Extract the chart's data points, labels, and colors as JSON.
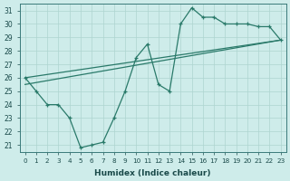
{
  "xlabel": "Humidex (Indice chaleur)",
  "background_color": "#ceecea",
  "line_color": "#2a7a6a",
  "grid_color": "#add4d0",
  "line1_x": [
    0,
    1,
    2,
    3,
    4,
    5,
    6,
    7,
    8,
    9,
    10,
    11,
    12,
    13,
    14,
    15,
    16,
    17,
    18,
    19,
    20,
    21,
    22,
    23
  ],
  "line1_y": [
    26,
    25,
    24,
    24,
    23,
    20.8,
    21,
    21.2,
    23,
    25,
    27.5,
    28.5,
    25.5,
    25,
    30,
    31.2,
    30.5,
    30.5,
    30,
    30,
    30,
    29.8,
    29.8,
    28.8
  ],
  "line2_x": [
    0,
    23
  ],
  "line2_y": [
    26.0,
    28.8
  ],
  "line3_x": [
    0,
    23
  ],
  "line3_y": [
    25.5,
    28.8
  ],
  "xlim": [
    -0.5,
    23.5
  ],
  "ylim": [
    20.5,
    31.5
  ],
  "yticks": [
    21,
    22,
    23,
    24,
    25,
    26,
    27,
    28,
    29,
    30,
    31
  ],
  "xticks": [
    0,
    1,
    2,
    3,
    4,
    5,
    6,
    7,
    8,
    9,
    10,
    11,
    12,
    13,
    14,
    15,
    16,
    17,
    18,
    19,
    20,
    21,
    22,
    23
  ]
}
